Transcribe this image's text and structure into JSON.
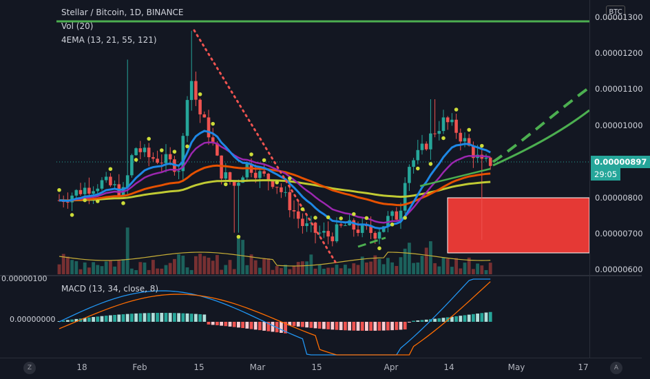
{
  "header": {
    "symbol_line": "Stellar / Bitcoin, 1D, BINANCE",
    "vol_legend": "Vol (20)",
    "ema_legend": "4EMA (13, 21, 55, 121)"
  },
  "price_axis": {
    "currency": "BTC",
    "ticks": [
      "0.00001300",
      "0.00001200",
      "0.00001100",
      "0.00001000",
      "0.00000800",
      "0.00000700",
      "0.00000600"
    ],
    "last_price": "0.00000897",
    "countdown": "29:05"
  },
  "macd": {
    "legend": "MACD (13, 34, close, 8)",
    "ticks": [
      "0.00000100",
      "0.00000000"
    ]
  },
  "time_axis": {
    "ticks": [
      "18",
      "Feb",
      "15",
      "Mar",
      "15",
      "Apr",
      "14",
      "May",
      "17"
    ]
  },
  "corners": {
    "left": "Z",
    "right": "A"
  },
  "colors": {
    "background": "#131722",
    "up": "#26a69a",
    "down": "#ef5350",
    "ema13": "#1e88e5",
    "ema21": "#9c27b0",
    "ema55": "#e65100",
    "ema121": "#c0ca33",
    "resistance": "#4caf50",
    "box": "#e53935",
    "dots": "#cddc39"
  },
  "chart_data": {
    "type": "candlestick",
    "y_range": [
      5.9e-06,
      1.33e-05
    ],
    "last_price": 8.97e-06,
    "trend": "range then Feb spike to 0.0000126, decline into March/April low near 0.0000068, April rally to 0.0000107, now 0.00000897",
    "resistance_level": 1.29e-05,
    "support_box": [
      6.5e-06,
      8e-06
    ]
  }
}
